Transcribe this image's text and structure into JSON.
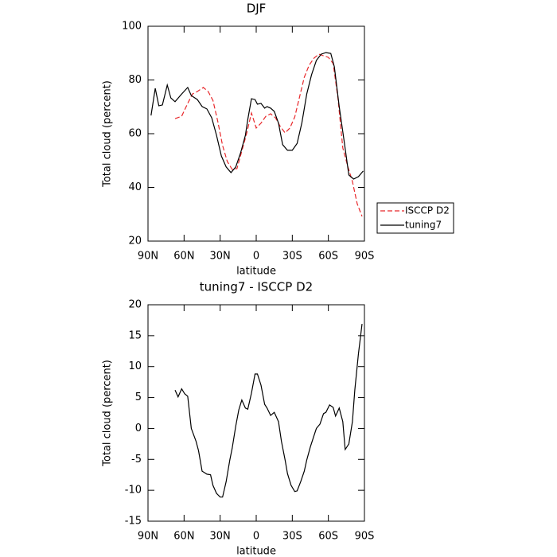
{
  "chart_data": [
    {
      "type": "line",
      "title": "DJF",
      "xlabel": "latitude",
      "ylabel": "Total cloud (percent)",
      "xlim": [
        90,
        -90
      ],
      "xticks": [
        {
          "value": 90,
          "label": "90N"
        },
        {
          "value": 60,
          "label": "60N"
        },
        {
          "value": 30,
          "label": "30N"
        },
        0,
        {
          "value": -30,
          "label": "30S"
        },
        {
          "value": -60,
          "label": "60S"
        },
        {
          "value": -90,
          "label": "90S"
        }
      ],
      "ylim": [
        20,
        100
      ],
      "yticks": [
        20,
        40,
        60,
        80,
        100
      ],
      "legend": "right",
      "series": [
        {
          "name": "ISCCP D2",
          "color": "#e8282b",
          "dash": true,
          "x": [
            67.5,
            62,
            57,
            53,
            49,
            44,
            40,
            36,
            32,
            28,
            24,
            20,
            16,
            12,
            8,
            4,
            0,
            -4,
            -8,
            -12,
            -16,
            -20,
            -24,
            -28,
            -32,
            -36,
            -40,
            -44,
            -48,
            -52,
            -56,
            -60,
            -64,
            -68,
            -72,
            -76,
            -80,
            -84,
            -88
          ],
          "values": [
            65.6,
            66.5,
            71.3,
            74.8,
            75.7,
            77.2,
            75.7,
            72.4,
            64.7,
            55.6,
            49.6,
            46.7,
            47,
            53.5,
            60,
            67.7,
            62.1,
            63.9,
            66.5,
            67.4,
            65.9,
            62.7,
            60.3,
            62.1,
            66.2,
            73.6,
            81,
            85.5,
            88.1,
            89.6,
            89,
            88.4,
            86.1,
            73,
            54.7,
            48.1,
            42.2,
            33.9,
            29.2
          ]
        },
        {
          "name": "tuning7",
          "color": "#000000",
          "dash": false,
          "x": [
            87.5,
            84,
            81,
            78,
            74,
            71,
            67.5,
            62,
            57,
            54,
            49,
            45,
            41,
            37,
            33,
            29,
            25,
            21,
            17,
            13,
            9,
            7,
            4,
            1,
            -1,
            -4,
            -7,
            -9,
            -12,
            -15,
            -18.5,
            -22,
            -26,
            -30,
            -34,
            -38,
            -42,
            -46,
            -50,
            -54,
            -58,
            -62,
            -65,
            -69,
            -73,
            -77,
            -81,
            -85,
            -89
          ],
          "values": [
            66.8,
            76.9,
            70.4,
            70.7,
            78.1,
            73.3,
            71.9,
            74.8,
            77.2,
            74.2,
            72.7,
            70.1,
            69.2,
            65.9,
            59.4,
            51.7,
            47.6,
            45.5,
            47.6,
            52.9,
            59.4,
            65.3,
            73,
            72.7,
            71,
            71.3,
            69.5,
            70.1,
            69.5,
            68.3,
            63.9,
            55.9,
            53.8,
            53.8,
            56.4,
            64.1,
            74.8,
            81.9,
            87.3,
            89.6,
            90.2,
            89.9,
            84.9,
            70.1,
            57.6,
            44.6,
            43.1,
            44,
            46.1
          ]
        }
      ]
    },
    {
      "type": "line",
      "title": "tuning7 - ISCCP D2",
      "xlabel": "latitude",
      "ylabel": "Total cloud (percent)",
      "xlim": [
        90,
        -90
      ],
      "xticks": [
        {
          "value": 90,
          "label": "90N"
        },
        {
          "value": 60,
          "label": "60N"
        },
        {
          "value": 30,
          "label": "30N"
        },
        0,
        {
          "value": -30,
          "label": "30S"
        },
        {
          "value": -60,
          "label": "60S"
        },
        {
          "value": -90,
          "label": "90S"
        }
      ],
      "ylim": [
        -15,
        20
      ],
      "yticks": [
        -15,
        -10,
        -5,
        0,
        5,
        10,
        15,
        20
      ],
      "series": [
        {
          "color": "#000000",
          "dash": false,
          "x": [
            67.5,
            65,
            62,
            59.5,
            57,
            54,
            50,
            48,
            45,
            41,
            38,
            36,
            33,
            30,
            28,
            25,
            22,
            20,
            17,
            14.5,
            12,
            9,
            7,
            4,
            1,
            -1,
            -4,
            -7,
            -9,
            -12,
            -15,
            -18.5,
            -21,
            -24,
            -26,
            -29,
            -32,
            -34,
            -37,
            -40,
            -42,
            -45,
            -48,
            -50,
            -53,
            -56,
            -58,
            -61,
            -64,
            -66,
            -69,
            -72,
            -74,
            -77,
            -80,
            -82,
            -85,
            -88
          ],
          "values": [
            6.2,
            5.1,
            6.4,
            5.6,
            5.2,
            0,
            -2.1,
            -3.6,
            -6.9,
            -7.4,
            -7.5,
            -9.2,
            -10.5,
            -11.1,
            -11.1,
            -8.6,
            -5.1,
            -3.2,
            0.4,
            3,
            4.6,
            3.3,
            3.1,
            5.7,
            8.8,
            8.8,
            7,
            3.9,
            3.3,
            2.1,
            2.6,
            1.1,
            -2.1,
            -5.1,
            -7.3,
            -9.2,
            -10.2,
            -10.1,
            -8.6,
            -6.9,
            -5.1,
            -3,
            -1.2,
            0,
            0.7,
            2.4,
            2.6,
            3.8,
            3.4,
            2,
            3.3,
            1.1,
            -3.4,
            -2.5,
            1.1,
            6.2,
            12,
            16.9
          ]
        }
      ]
    }
  ]
}
